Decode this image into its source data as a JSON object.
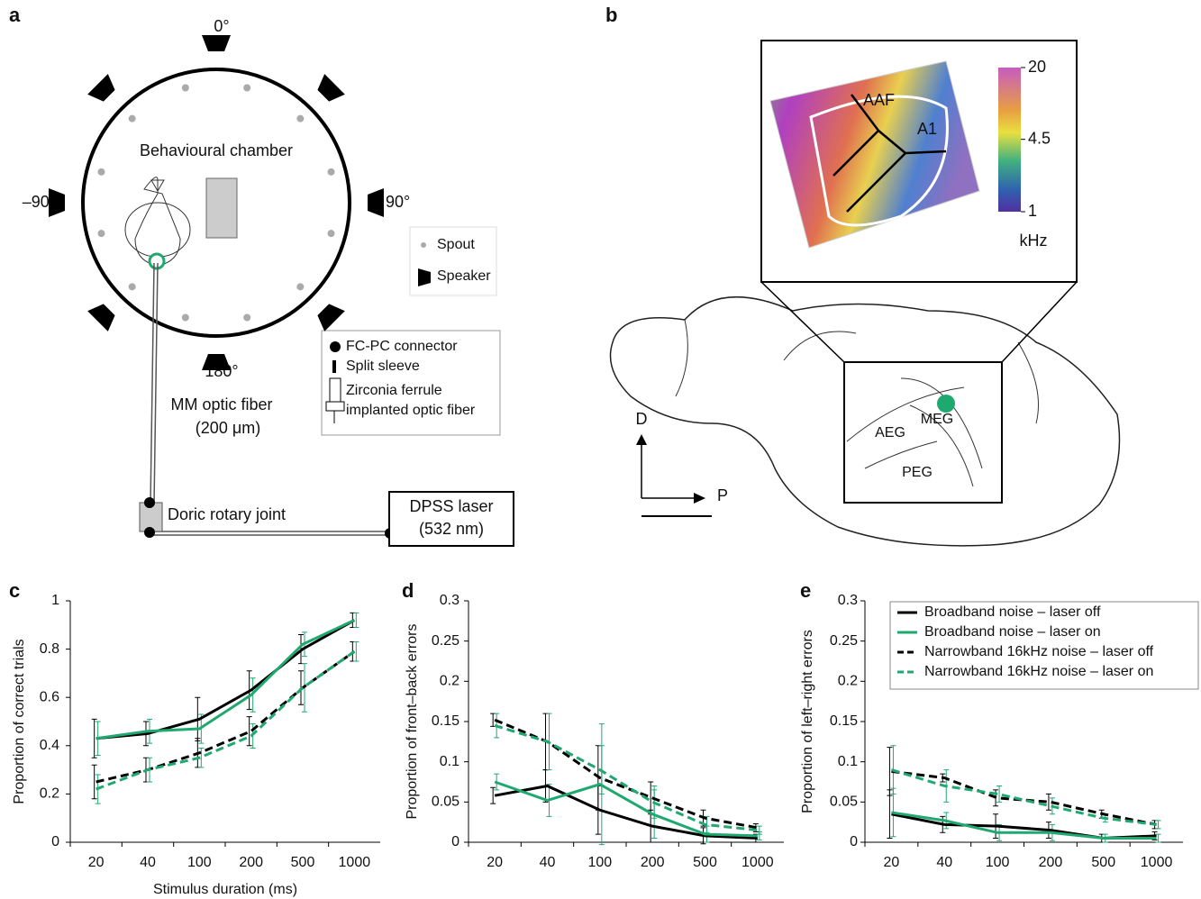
{
  "panel_labels": [
    "a",
    "b",
    "c",
    "d",
    "e"
  ],
  "diagram_a": {
    "angles": [
      "0°",
      "90°",
      "180°",
      "–90°"
    ],
    "chamber": "Behavioural chamber",
    "legend": [
      "Spout",
      "Speaker"
    ],
    "fiber_legend": [
      "FC-PC connector",
      "Split sleeve",
      "Zirconia ferrule",
      "implanted optic fiber"
    ],
    "fiber": [
      "MM optic fiber",
      "(200 μm)"
    ],
    "joint": "Doric rotary joint",
    "laser": [
      "DPSS laser",
      "(532 nm)"
    ]
  },
  "diagram_b": {
    "areas": [
      "AAF",
      "A1"
    ],
    "regions": [
      "MEG",
      "AEG",
      "PEG"
    ],
    "axes": [
      "D",
      "P"
    ],
    "colorbar": {
      "label": "kHz",
      "scale": "log",
      "lim": [
        1,
        20
      ],
      "ticks": [
        1,
        4.5,
        20
      ]
    }
  },
  "chart_data": [
    {
      "type": "line",
      "y_label": "Proportion of correct trials",
      "x_label": "Stimulus duration (ms)",
      "categories": [
        "20",
        "40",
        "100",
        "200",
        "500",
        "1000"
      ],
      "ylim": [
        0,
        1
      ],
      "yticks": [
        0,
        0.2,
        0.4,
        0.6,
        0.8,
        1
      ],
      "series": [
        {
          "color": "#000000",
          "dashed": false,
          "values": [
            0.43,
            0.45,
            0.51,
            0.63,
            0.8,
            0.92
          ],
          "errors": [
            0.08,
            0.05,
            0.09,
            0.08,
            0.06,
            0.03
          ]
        },
        {
          "color": "#1fa971",
          "dashed": false,
          "values": [
            0.43,
            0.46,
            0.47,
            0.61,
            0.82,
            0.92
          ],
          "errors": [
            0.07,
            0.05,
            0.06,
            0.07,
            0.05,
            0.03
          ]
        },
        {
          "color": "#000000",
          "dashed": true,
          "values": [
            0.25,
            0.3,
            0.37,
            0.46,
            0.64,
            0.79
          ],
          "errors": [
            0.07,
            0.05,
            0.06,
            0.06,
            0.07,
            0.04
          ]
        },
        {
          "color": "#1fa971",
          "dashed": true,
          "values": [
            0.22,
            0.3,
            0.35,
            0.44,
            0.64,
            0.79
          ],
          "errors": [
            0.06,
            0.05,
            0.04,
            0.05,
            0.1,
            0.04
          ]
        }
      ]
    },
    {
      "type": "line",
      "y_label": "Proportion of front–back errors",
      "categories": [
        "20",
        "40",
        "100",
        "200",
        "500",
        "1000"
      ],
      "ylim": [
        0,
        0.3
      ],
      "yticks": [
        0,
        0.05,
        0.1,
        0.15,
        0.2,
        0.25,
        0.3
      ],
      "series": [
        {
          "color": "#000000",
          "dashed": false,
          "values": [
            0.058,
            0.07,
            0.04,
            0.02,
            0.008,
            0.005
          ],
          "errors": [
            0.01,
            0.02,
            0.03,
            0.02,
            0.01,
            0.005
          ]
        },
        {
          "color": "#1fa971",
          "dashed": false,
          "values": [
            0.075,
            0.052,
            0.072,
            0.035,
            0.01,
            0.008
          ],
          "errors": [
            0.01,
            0.02,
            0.075,
            0.03,
            0.01,
            0.005
          ]
        },
        {
          "color": "#000000",
          "dashed": true,
          "values": [
            0.152,
            0.125,
            0.08,
            0.055,
            0.03,
            0.018
          ],
          "errors": [
            0.008,
            0.035,
            0.04,
            0.02,
            0.01,
            0.005
          ]
        },
        {
          "color": "#1fa971",
          "dashed": true,
          "values": [
            0.145,
            0.125,
            0.09,
            0.05,
            0.022,
            0.015
          ],
          "errors": [
            0.015,
            0.035,
            0.03,
            0.02,
            0.01,
            0.005
          ]
        }
      ]
    },
    {
      "type": "line",
      "y_label": "Proportion of left–right errors",
      "legend": "upper right",
      "categories": [
        "20",
        "40",
        "100",
        "200",
        "500",
        "1000"
      ],
      "ylim": [
        0,
        0.3
      ],
      "yticks": [
        0,
        0.05,
        0.1,
        0.15,
        0.2,
        0.25,
        0.3
      ],
      "series": [
        {
          "name": "Broadband noise – laser off",
          "color": "#000000",
          "dashed": false,
          "values": [
            0.035,
            0.022,
            0.02,
            0.015,
            0.005,
            0.008
          ],
          "errors": [
            0.03,
            0.01,
            0.015,
            0.01,
            0.005,
            0.005
          ]
        },
        {
          "name": "Broadband noise – laser on",
          "color": "#1fa971",
          "dashed": false,
          "values": [
            0.037,
            0.027,
            0.012,
            0.012,
            0.005,
            0.005
          ],
          "errors": [
            0.03,
            0.01,
            0.01,
            0.01,
            0.005,
            0.005
          ]
        },
        {
          "name": "Narrowband 16kHz noise – laser off",
          "color": "#000000",
          "dashed": true,
          "values": [
            0.088,
            0.08,
            0.055,
            0.05,
            0.035,
            0.022
          ],
          "errors": [
            0.03,
            0.005,
            0.01,
            0.01,
            0.005,
            0.005
          ]
        },
        {
          "name": "Narrowband 16kHz noise – laser on",
          "color": "#1fa971",
          "dashed": true,
          "values": [
            0.09,
            0.07,
            0.06,
            0.045,
            0.03,
            0.022
          ],
          "errors": [
            0.03,
            0.02,
            0.01,
            0.01,
            0.005,
            0.005
          ]
        }
      ]
    }
  ]
}
